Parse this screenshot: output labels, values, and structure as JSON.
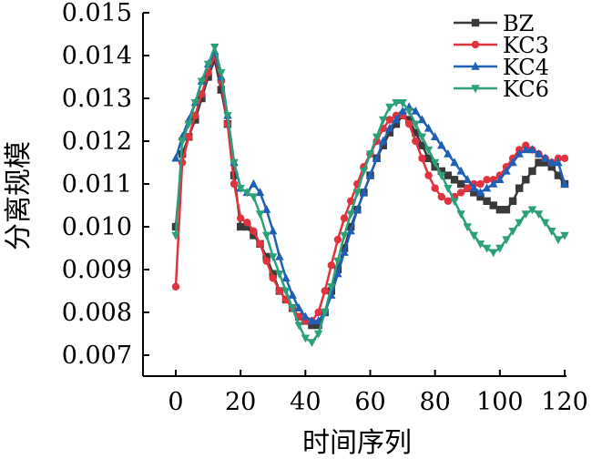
{
  "chart_data": {
    "type": "line",
    "title": "",
    "xlabel": "时间序列",
    "ylabel": "分离规模",
    "xlim": [
      -8,
      120
    ],
    "ylim": [
      0.0065,
      0.015
    ],
    "xticks": [
      0,
      20,
      40,
      60,
      80,
      100,
      120
    ],
    "yticks": [
      0.007,
      0.008,
      0.009,
      0.01,
      0.011,
      0.012,
      0.013,
      0.014,
      0.015
    ],
    "ytick_labels": [
      "0.007",
      "0.008",
      "0.009",
      "0.010",
      "0.011",
      "0.012",
      "0.013",
      "0.014",
      "0.015"
    ],
    "xtick_labels": [
      "0",
      "20",
      "40",
      "60",
      "80",
      "100",
      "120"
    ],
    "legend_position": "top-right",
    "grid": false,
    "x_step": 2,
    "series": [
      {
        "name": "BZ",
        "marker": "square",
        "color": "#3a3a3a",
        "values": [
          0.01,
          0.0117,
          0.0121,
          0.0125,
          0.013,
          0.0135,
          0.0139,
          0.0132,
          0.0124,
          0.0112,
          0.01,
          0.01,
          0.0098,
          0.0096,
          0.0093,
          0.0089,
          0.0085,
          0.0083,
          0.0081,
          0.0079,
          0.0078,
          0.0077,
          0.0077,
          0.008,
          0.0085,
          0.009,
          0.0095,
          0.01,
          0.0104,
          0.0108,
          0.0112,
          0.0116,
          0.0119,
          0.0122,
          0.0124,
          0.0126,
          0.0125,
          0.0122,
          0.0119,
          0.0116,
          0.0114,
          0.0113,
          0.0112,
          0.0111,
          0.011,
          0.0109,
          0.0108,
          0.0107,
          0.0106,
          0.0105,
          0.0104,
          0.0104,
          0.0106,
          0.0109,
          0.0111,
          0.0113,
          0.0115,
          0.0115,
          0.0114,
          0.0112,
          0.011
        ]
      },
      {
        "name": "KC3",
        "marker": "circle",
        "color": "#e0323f",
        "values": [
          0.0086,
          0.0115,
          0.0121,
          0.0126,
          0.0131,
          0.0136,
          0.014,
          0.0134,
          0.0124,
          0.011,
          0.0102,
          0.0101,
          0.0099,
          0.0096,
          0.0092,
          0.0088,
          0.0085,
          0.0083,
          0.0081,
          0.0079,
          0.0078,
          0.0078,
          0.008,
          0.0085,
          0.0091,
          0.0097,
          0.0102,
          0.0106,
          0.011,
          0.0114,
          0.0117,
          0.012,
          0.0123,
          0.0125,
          0.0126,
          0.0126,
          0.0124,
          0.012,
          0.0116,
          0.0112,
          0.0109,
          0.0107,
          0.0106,
          0.0107,
          0.0108,
          0.0109,
          0.011,
          0.011,
          0.0111,
          0.0111,
          0.0112,
          0.0114,
          0.0116,
          0.0118,
          0.0119,
          0.0118,
          0.0117,
          0.0116,
          0.0115,
          0.0116,
          0.0116
        ]
      },
      {
        "name": "KC4",
        "marker": "triangle-up",
        "color": "#1f5fb5",
        "values": [
          0.0116,
          0.0121,
          0.0125,
          0.0129,
          0.0134,
          0.0138,
          0.0141,
          0.0135,
          0.0126,
          0.0115,
          0.0109,
          0.0108,
          0.011,
          0.0108,
          0.0104,
          0.0099,
          0.0093,
          0.0088,
          0.0084,
          0.0081,
          0.0079,
          0.0078,
          0.0078,
          0.008,
          0.0084,
          0.0089,
          0.0094,
          0.0099,
          0.0104,
          0.0108,
          0.0112,
          0.0116,
          0.012,
          0.0123,
          0.0125,
          0.0127,
          0.0128,
          0.0127,
          0.0125,
          0.0123,
          0.0121,
          0.0119,
          0.0117,
          0.0115,
          0.0113,
          0.0111,
          0.0109,
          0.0108,
          0.0109,
          0.011,
          0.0111,
          0.0113,
          0.0115,
          0.0117,
          0.0118,
          0.0118,
          0.0117,
          0.0116,
          0.0115,
          0.0115,
          0.011
        ]
      },
      {
        "name": "KC6",
        "marker": "triangle-down",
        "color": "#2ca07a",
        "values": [
          0.0098,
          0.012,
          0.0124,
          0.0129,
          0.0134,
          0.0138,
          0.0142,
          0.0136,
          0.0126,
          0.0115,
          0.0109,
          0.0108,
          0.0107,
          0.0103,
          0.0098,
          0.0093,
          0.0089,
          0.0085,
          0.0081,
          0.0077,
          0.0074,
          0.0073,
          0.0075,
          0.008,
          0.0086,
          0.0092,
          0.0098,
          0.0103,
          0.0108,
          0.0113,
          0.0117,
          0.0121,
          0.0125,
          0.0128,
          0.0129,
          0.0129,
          0.0127,
          0.0124,
          0.0121,
          0.0118,
          0.0115,
          0.0112,
          0.0109,
          0.0106,
          0.0103,
          0.01,
          0.0098,
          0.0096,
          0.0095,
          0.0094,
          0.0095,
          0.0097,
          0.0099,
          0.0101,
          0.0103,
          0.0104,
          0.0103,
          0.0101,
          0.0099,
          0.0097,
          0.0098
        ]
      }
    ]
  }
}
